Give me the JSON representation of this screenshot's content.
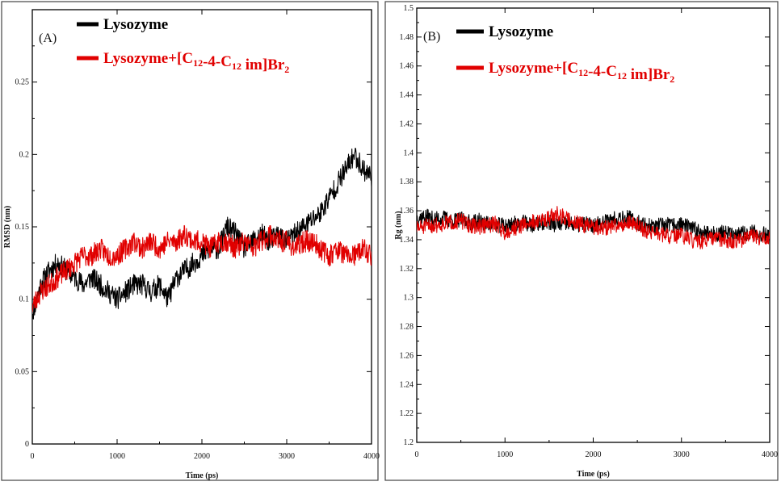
{
  "chart_data": [
    {
      "id": "A",
      "type": "line",
      "panel_label": "(A)",
      "xlabel": "Time (ps)",
      "ylabel": "RMSD (nm)",
      "xlim": [
        0,
        4000
      ],
      "ylim": [
        0,
        0.3
      ],
      "x_ticks": [
        "0",
        "1000",
        "2000",
        "3000",
        "4000"
      ],
      "y_ticks": [
        "0",
        "0.05",
        "0.1",
        "0.15",
        "0.2",
        "0.25"
      ],
      "legend_position": "top-left",
      "series": [
        {
          "name": "Lysozyme",
          "color": "#000000",
          "x": [
            0,
            100,
            200,
            300,
            400,
            500,
            600,
            700,
            800,
            900,
            1000,
            1100,
            1200,
            1300,
            1400,
            1500,
            1600,
            1700,
            1800,
            1900,
            2000,
            2100,
            2200,
            2300,
            2400,
            2500,
            2600,
            2700,
            2800,
            2900,
            3000,
            3100,
            3200,
            3300,
            3400,
            3500,
            3600,
            3700,
            3800,
            3900,
            4000
          ],
          "values": [
            0.09,
            0.11,
            0.12,
            0.125,
            0.12,
            0.115,
            0.11,
            0.115,
            0.11,
            0.105,
            0.1,
            0.105,
            0.11,
            0.11,
            0.105,
            0.11,
            0.1,
            0.115,
            0.12,
            0.125,
            0.13,
            0.135,
            0.135,
            0.15,
            0.145,
            0.135,
            0.14,
            0.145,
            0.14,
            0.145,
            0.14,
            0.145,
            0.15,
            0.155,
            0.16,
            0.17,
            0.18,
            0.19,
            0.2,
            0.19,
            0.185
          ]
        },
        {
          "name": "Lysozyme+[C12-4-C12 im]Br2",
          "color": "#e10000",
          "x": [
            0,
            100,
            200,
            300,
            400,
            500,
            600,
            700,
            800,
            900,
            1000,
            1100,
            1200,
            1300,
            1400,
            1500,
            1600,
            1700,
            1800,
            1900,
            2000,
            2100,
            2200,
            2300,
            2400,
            2500,
            2600,
            2700,
            2800,
            2900,
            3000,
            3100,
            3200,
            3300,
            3400,
            3500,
            3600,
            3700,
            3800,
            3900,
            4000
          ],
          "values": [
            0.095,
            0.105,
            0.11,
            0.115,
            0.12,
            0.125,
            0.13,
            0.13,
            0.135,
            0.13,
            0.13,
            0.135,
            0.14,
            0.135,
            0.14,
            0.135,
            0.14,
            0.14,
            0.145,
            0.14,
            0.14,
            0.135,
            0.14,
            0.14,
            0.135,
            0.14,
            0.135,
            0.14,
            0.145,
            0.14,
            0.14,
            0.135,
            0.14,
            0.14,
            0.135,
            0.13,
            0.135,
            0.13,
            0.13,
            0.135,
            0.13
          ]
        }
      ]
    },
    {
      "id": "B",
      "type": "line",
      "panel_label": "(B)",
      "xlabel": "Time (ps)",
      "ylabel": "Rg (nm)",
      "xlim": [
        0,
        4000
      ],
      "ylim": [
        1.2,
        1.5
      ],
      "x_ticks": [
        "0",
        "1000",
        "2000",
        "3000",
        "4000"
      ],
      "y_ticks": [
        "1.2",
        "1.22",
        "1.24",
        "1.26",
        "1.28",
        "1.3",
        "1.32",
        "1.34",
        "1.36",
        "1.38",
        "1.4",
        "1.42",
        "1.44",
        "1.46",
        "1.48",
        "1.5"
      ],
      "legend_position": "top-left",
      "series": [
        {
          "name": "Lysozyme",
          "color": "#000000",
          "x": [
            0,
            100,
            200,
            300,
            400,
            500,
            600,
            700,
            800,
            900,
            1000,
            1100,
            1200,
            1300,
            1400,
            1500,
            1600,
            1700,
            1800,
            1900,
            2000,
            2100,
            2200,
            2300,
            2400,
            2500,
            2600,
            2700,
            2800,
            2900,
            3000,
            3100,
            3200,
            3300,
            3400,
            3500,
            3600,
            3700,
            3800,
            3900,
            4000
          ],
          "values": [
            1.355,
            1.356,
            1.354,
            1.355,
            1.353,
            1.354,
            1.352,
            1.353,
            1.351,
            1.35,
            1.35,
            1.351,
            1.352,
            1.35,
            1.351,
            1.352,
            1.35,
            1.351,
            1.35,
            1.351,
            1.35,
            1.352,
            1.354,
            1.356,
            1.355,
            1.352,
            1.35,
            1.349,
            1.35,
            1.35,
            1.351,
            1.348,
            1.346,
            1.345,
            1.344,
            1.345,
            1.343,
            1.344,
            1.345,
            1.344,
            1.343
          ]
        },
        {
          "name": "Lysozyme+[C12-4-C12 im]Br2",
          "color": "#e10000",
          "x": [
            0,
            100,
            200,
            300,
            400,
            500,
            600,
            700,
            800,
            900,
            1000,
            1100,
            1200,
            1300,
            1400,
            1500,
            1600,
            1700,
            1800,
            1900,
            2000,
            2100,
            2200,
            2300,
            2400,
            2500,
            2600,
            2700,
            2800,
            2900,
            3000,
            3100,
            3200,
            3300,
            3400,
            3500,
            3600,
            3700,
            3800,
            3900,
            4000
          ],
          "values": [
            1.348,
            1.349,
            1.35,
            1.351,
            1.352,
            1.353,
            1.35,
            1.349,
            1.35,
            1.351,
            1.345,
            1.348,
            1.35,
            1.352,
            1.353,
            1.355,
            1.358,
            1.354,
            1.352,
            1.35,
            1.349,
            1.348,
            1.349,
            1.35,
            1.352,
            1.35,
            1.346,
            1.345,
            1.343,
            1.342,
            1.343,
            1.34,
            1.338,
            1.34,
            1.341,
            1.34,
            1.339,
            1.34,
            1.342,
            1.341,
            1.34
          ]
        }
      ]
    }
  ]
}
